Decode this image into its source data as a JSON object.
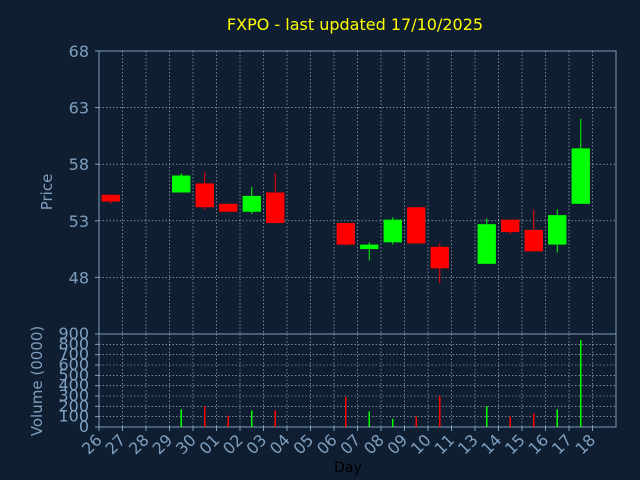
{
  "chart_data": [
    {
      "type": "candlestick",
      "title": "FXPO - last updated 17/10/2025",
      "ylabel": "Price",
      "ylim": [
        43,
        68
      ],
      "yticks": [
        48,
        53,
        58,
        63,
        68
      ],
      "grid": true,
      "colors": {
        "up": "#00ff00",
        "down": "#ff0000"
      },
      "x": [
        "26",
        "27",
        "28",
        "29",
        "30",
        "01",
        "02",
        "03",
        "04",
        "05",
        "06",
        "07",
        "08",
        "09",
        "10",
        "11",
        "13",
        "14",
        "15",
        "16",
        "17",
        "18"
      ],
      "candles": [
        {
          "x": "26",
          "open": 55.3,
          "high": 55.3,
          "low": 54.5,
          "close": 54.7
        },
        {
          "x": "29",
          "open": 55.5,
          "high": 57.2,
          "low": 55.5,
          "close": 57.0
        },
        {
          "x": "30",
          "open": 56.3,
          "high": 57.3,
          "low": 54.0,
          "close": 54.2
        },
        {
          "x": "01",
          "open": 54.5,
          "high": 54.5,
          "low": 53.8,
          "close": 53.8
        },
        {
          "x": "02",
          "open": 53.8,
          "high": 56.0,
          "low": 53.6,
          "close": 55.2
        },
        {
          "x": "03",
          "open": 55.5,
          "high": 57.2,
          "low": 52.8,
          "close": 52.8
        },
        {
          "x": "06",
          "open": 52.8,
          "high": 52.8,
          "low": 50.8,
          "close": 50.9
        },
        {
          "x": "07",
          "open": 50.5,
          "high": 51.1,
          "low": 49.5,
          "close": 50.9
        },
        {
          "x": "08",
          "open": 51.1,
          "high": 53.3,
          "low": 50.9,
          "close": 53.1
        },
        {
          "x": "09",
          "open": 54.2,
          "high": 54.2,
          "low": 51.0,
          "close": 51.0
        },
        {
          "x": "10",
          "open": 50.7,
          "high": 51.0,
          "low": 47.5,
          "close": 48.8
        },
        {
          "x": "13",
          "open": 49.2,
          "high": 53.2,
          "low": 49.2,
          "close": 52.7
        },
        {
          "x": "14",
          "open": 53.1,
          "high": 53.1,
          "low": 51.8,
          "close": 52.0
        },
        {
          "x": "15",
          "open": 52.2,
          "high": 54.0,
          "low": 50.3,
          "close": 50.3
        },
        {
          "x": "16",
          "open": 50.9,
          "high": 54.0,
          "low": 50.2,
          "close": 53.5
        },
        {
          "x": "17",
          "open": 54.5,
          "high": 62.0,
          "low": 54.5,
          "close": 59.4
        }
      ]
    },
    {
      "type": "bar",
      "ylabel": "Volume (0000)",
      "xlabel": "Day",
      "ylim": [
        0,
        900
      ],
      "yticks": [
        0,
        100,
        200,
        300,
        400,
        500,
        600,
        700,
        800,
        900
      ],
      "grid": true,
      "categories": [
        "29",
        "30",
        "01",
        "02",
        "03",
        "06",
        "07",
        "08",
        "09",
        "10",
        "13",
        "14",
        "15",
        "16",
        "17"
      ],
      "values": [
        170,
        200,
        110,
        160,
        160,
        290,
        150,
        80,
        100,
        300,
        200,
        100,
        130,
        170,
        840
      ],
      "bar_colors": [
        "up",
        "down",
        "down",
        "up",
        "down",
        "down",
        "up",
        "up",
        "down",
        "down",
        "up",
        "down",
        "down",
        "up",
        "up"
      ]
    }
  ]
}
